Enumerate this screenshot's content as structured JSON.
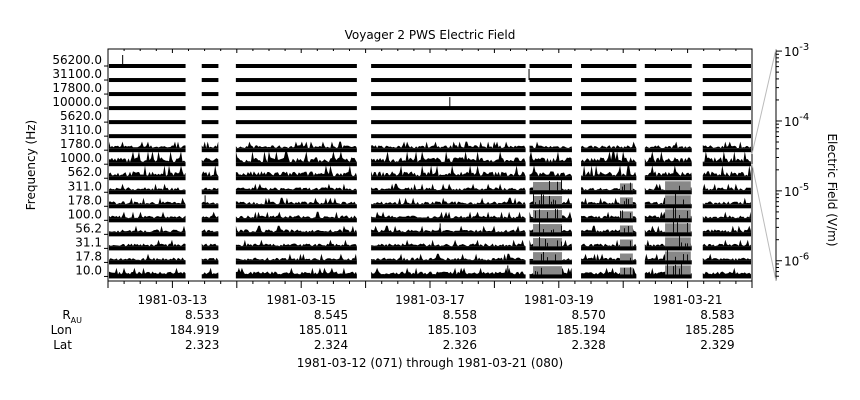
{
  "chart_data": {
    "type": "spectrogram",
    "title": "Voyager 2 PWS Electric Field",
    "ylabel": "Frequency (Hz)",
    "colorbar_label": "Electric Field (V/m)",
    "colorbar_ticks": [
      {
        "base": "10",
        "exp": "-3",
        "value": 0.001
      },
      {
        "base": "10",
        "exp": "-4",
        "value": 0.0001
      },
      {
        "base": "10",
        "exp": "-5",
        "value": 1e-05
      },
      {
        "base": "10",
        "exp": "-6",
        "value": 1e-06
      }
    ],
    "channels": [
      "56200.0",
      "31100.0",
      "17800.0",
      "10000.0",
      "5620.0",
      "3110.0",
      "1780.0",
      "1000.0",
      "562.0",
      "311.0",
      "178.0",
      "100.0",
      "56.2",
      "31.1",
      "17.8",
      "10.0"
    ],
    "x_range_days": [
      0,
      10
    ],
    "date_ticks": [
      {
        "label": "1981-03-13",
        "day": 1
      },
      {
        "label": "1981-03-15",
        "day": 3
      },
      {
        "label": "1981-03-17",
        "day": 5
      },
      {
        "label": "1981-03-19",
        "day": 7
      },
      {
        "label": "1981-03-21",
        "day": 9
      }
    ],
    "data_gaps_days": [
      [
        1.22,
        1.44
      ],
      [
        1.73,
        1.97
      ],
      [
        3.88,
        4.07
      ],
      [
        6.5,
        6.53
      ],
      [
        7.22,
        7.33
      ],
      [
        8.22,
        8.32
      ],
      [
        9.08,
        9.22
      ]
    ],
    "events": [
      {
        "start": 6.6,
        "end": 7.05,
        "from_channel": 9,
        "strength": 0.9
      },
      {
        "start": 7.95,
        "end": 8.15,
        "from_channel": 9,
        "strength": 0.7
      },
      {
        "start": 8.65,
        "end": 9.05,
        "from_channel": 9,
        "strength": 1.0
      }
    ],
    "spikes": [
      {
        "day": 0.22,
        "channel": 0
      },
      {
        "day": 6.53,
        "channel": 1
      },
      {
        "day": 5.3,
        "channel": 3
      },
      {
        "day": 1.5,
        "channel": 10
      },
      {
        "day": 5.15,
        "channel": 12
      },
      {
        "day": 6.2,
        "channel": 15
      }
    ],
    "ephemeris": {
      "rows": [
        {
          "label": "R",
          "sub": "AU",
          "values": [
            "8.533",
            "8.545",
            "8.558",
            "8.570",
            "8.583"
          ]
        },
        {
          "label": "Lon",
          "sub": "",
          "values": [
            "184.919",
            "185.011",
            "185.103",
            "185.194",
            "185.285"
          ]
        },
        {
          "label": "Lat",
          "sub": "",
          "values": [
            "2.323",
            "2.324",
            "2.326",
            "2.328",
            "2.329"
          ]
        }
      ]
    },
    "footer": "1981-03-12 (071) through 1981-03-21 (080)"
  }
}
